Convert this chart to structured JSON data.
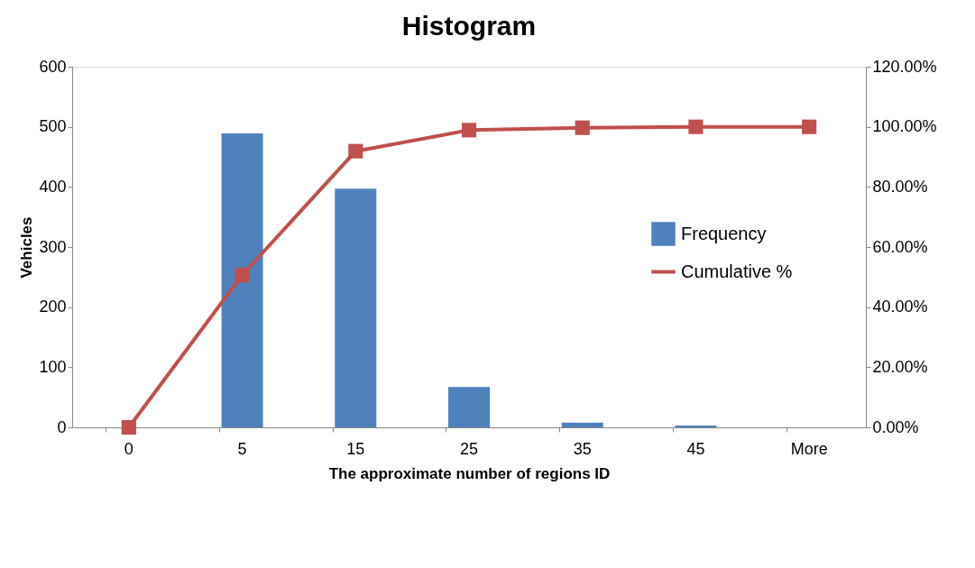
{
  "chart_data": {
    "type": "bar",
    "title": "Histogram",
    "xlabel": "The approximate number of regions ID",
    "ylabel": "Vehicles",
    "categories": [
      "0",
      "5",
      "15",
      "25",
      "35",
      "45",
      "More"
    ],
    "series": [
      {
        "name": "Frequency",
        "color": "#4f81bd",
        "values": [
          0,
          489,
          397,
          67,
          8,
          3,
          0
        ]
      },
      {
        "name": "Cumulative %",
        "type": "line",
        "axis": "y2",
        "color": "#c0504d",
        "marker": "square",
        "values": [
          0,
          50.7,
          91.9,
          98.9,
          99.7,
          100,
          100
        ]
      }
    ],
    "ylim": [
      0,
      600
    ],
    "yticks": [
      0,
      100,
      200,
      300,
      400,
      500,
      600
    ],
    "y2lim": [
      0,
      120
    ],
    "y2ticks": [
      {
        "value": 0,
        "label": "0.00%"
      },
      {
        "value": 20,
        "label": "20.00%"
      },
      {
        "value": 40,
        "label": "40.00%"
      },
      {
        "value": 60,
        "label": "60.00%"
      },
      {
        "value": 80,
        "label": "80.00%"
      },
      {
        "value": 100,
        "label": "100.00%"
      },
      {
        "value": 120,
        "label": "120.00%"
      }
    ],
    "legend": "right",
    "grid": false
  }
}
